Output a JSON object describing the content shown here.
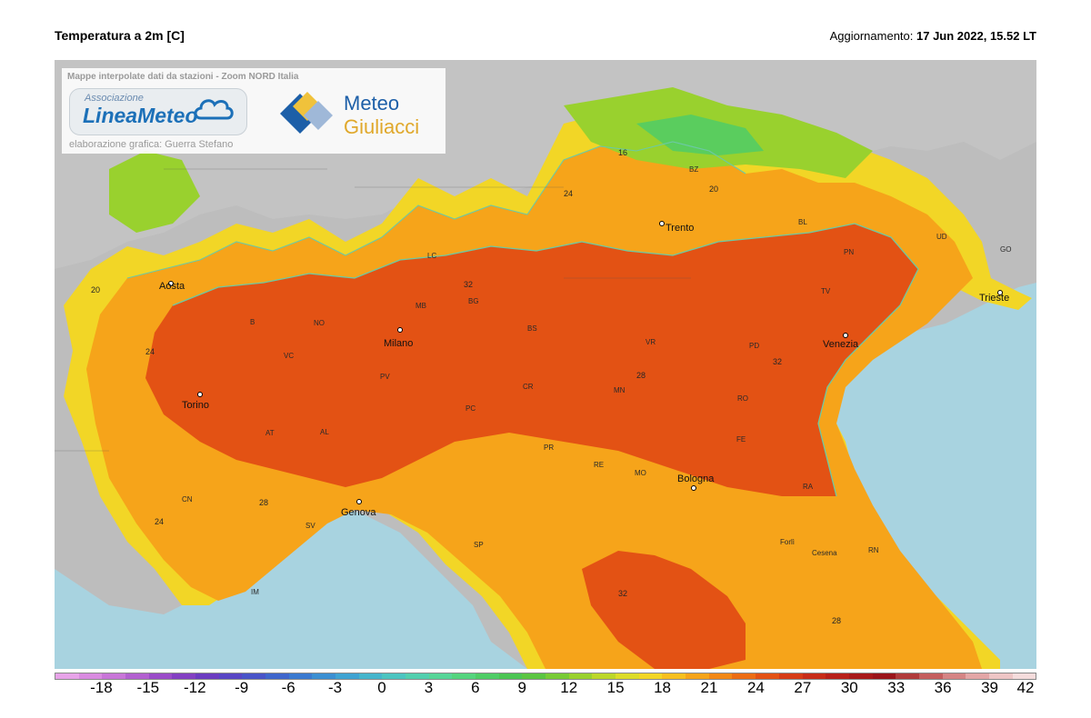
{
  "header": {
    "title": "Temperatura a 2m [C]",
    "update_label": "Aggiornamento:",
    "update_value": "17 Jun 2022, 15.52 LT"
  },
  "logo": {
    "caption": "Mappe interpolate dati da stazioni - Zoom NORD Italia",
    "lineameteo_small": "Associazione",
    "lineameteo_name": "LineaMeteo",
    "credit": "elaborazione grafica: Guerra Stefano",
    "meteo_word1": "Meteo",
    "meteo_word2": "Giuliacci"
  },
  "map": {
    "cities": [
      "Aosta",
      "Milano",
      "Torino",
      "Genova",
      "Venezia",
      "Trieste",
      "Bologna",
      "Trento"
    ],
    "provinces": [
      "MB",
      "BG",
      "BS",
      "VR",
      "VC",
      "NO",
      "B",
      "PV",
      "CR",
      "MN",
      "PC",
      "AT",
      "AL",
      "PR",
      "RE",
      "MO",
      "FE",
      "RO",
      "PD",
      "TV",
      "PN",
      "UD",
      "GO",
      "BZ",
      "BL",
      "RA",
      "Forlì",
      "Cesena",
      "RN",
      "CN",
      "SV",
      "IM",
      "SP",
      "LC"
    ],
    "isotherms": [
      "16",
      "20",
      "24",
      "28",
      "32"
    ]
  },
  "colorbar": {
    "ticks": [
      "-18",
      "-15",
      "-12",
      "-9",
      "-6",
      "-3",
      "0",
      "3",
      "6",
      "9",
      "12",
      "15",
      "18",
      "21",
      "24",
      "27",
      "30",
      "33",
      "36",
      "39",
      "42"
    ],
    "colors": [
      "#e7a3e8",
      "#d98be0",
      "#c876d8",
      "#b260d0",
      "#9a4cc8",
      "#8340c2",
      "#6b3bc0",
      "#5845c4",
      "#4954c8",
      "#3f66cc",
      "#3a7ad0",
      "#3b8fd2",
      "#3fa3d2",
      "#45b5cc",
      "#4cc4c0",
      "#52cfae",
      "#57d597",
      "#55d47e",
      "#4fcd66",
      "#4cc553",
      "#5bc542",
      "#78cb36",
      "#99d12e",
      "#bcd72a",
      "#dcdc2a",
      "#f2d626",
      "#f7bf1f",
      "#f6a41a",
      "#f28816",
      "#ec6d14",
      "#e35214",
      "#d63b16",
      "#c72c18",
      "#b82019",
      "#a8191a",
      "#9a141a",
      "#b03a3a",
      "#c45e5e",
      "#d58484",
      "#e3a6a6",
      "#eec5c5",
      "#f5dcdc"
    ]
  }
}
